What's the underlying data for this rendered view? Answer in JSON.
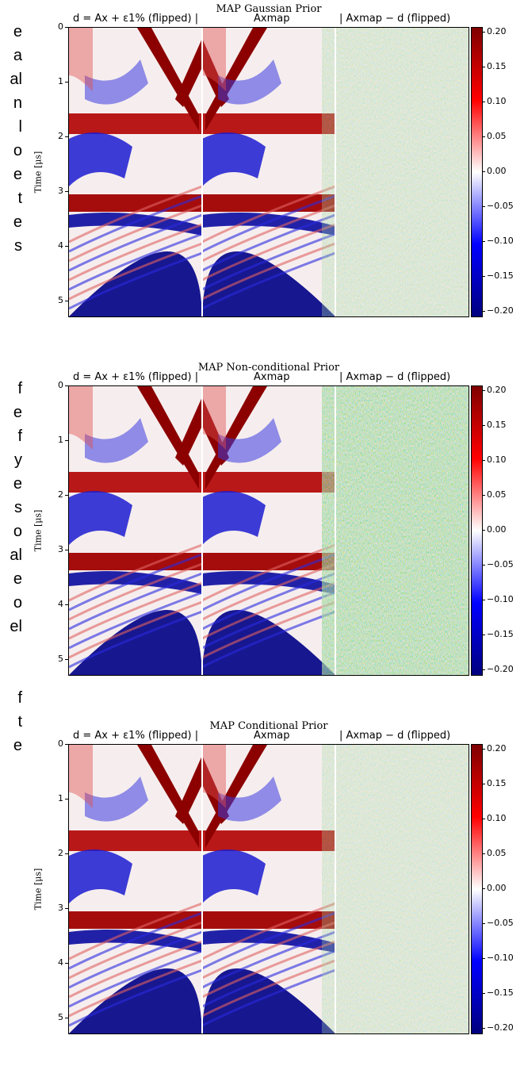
{
  "edge_words": [
    "e",
    "a",
    "al",
    "n",
    "l",
    "o",
    "e",
    "t",
    "e",
    "s",
    "f",
    "e",
    "f",
    "y",
    "e",
    "s",
    "o",
    "al",
    "e",
    "o",
    "el",
    "f",
    "t",
    "e"
  ],
  "colors": {
    "dark_red": "#7f0000",
    "red": "#ff0000",
    "white": "#ffffff",
    "blue": "#0000ff",
    "dark_blue": "#00007f"
  },
  "chart_data": [
    {
      "type": "heatmap",
      "title": "MAP Gaussian Prior",
      "subtitles": [
        "d = Ax + ε1% (flipped) |",
        "Axmap",
        "|  Axmap − d  (flipped)"
      ],
      "ylabel": "Time [μs]",
      "yticks": [
        "0",
        "1",
        "2",
        "3",
        "4",
        "5"
      ],
      "ylim": [
        0,
        5.3
      ],
      "colorbar_ticks": [
        "0.20",
        "0.15",
        "0.10",
        "0.05",
        "0.00",
        "−0.05",
        "−0.10",
        "−0.15",
        "−0.20"
      ],
      "clim": [
        -0.2,
        0.2
      ],
      "residual_level": 0.02
    },
    {
      "type": "heatmap",
      "title": "MAP Non-conditional Prior",
      "subtitles": [
        "d = Ax + ε1% (flipped) |",
        "Axmap",
        "|  Axmap − d  (flipped)"
      ],
      "ylabel": "Time [μs]",
      "yticks": [
        "0",
        "1",
        "2",
        "3",
        "4",
        "5"
      ],
      "ylim": [
        0,
        5.3
      ],
      "colorbar_ticks": [
        "0.20",
        "0.15",
        "0.10",
        "0.05",
        "0.00",
        "−0.05",
        "−0.10",
        "−0.15",
        "−0.20"
      ],
      "clim": [
        -0.2,
        0.2
      ],
      "residual_level": 0.1
    },
    {
      "type": "heatmap",
      "title": "MAP Conditional Prior",
      "subtitles": [
        "d = Ax + ε1% (flipped) |",
        "Axmap",
        "|  Axmap − d  (flipped)"
      ],
      "ylabel": "Time [μs]",
      "yticks": [
        "0",
        "1",
        "2",
        "3",
        "4",
        "5"
      ],
      "ylim": [
        0,
        5.3
      ],
      "colorbar_ticks": [
        "0.20",
        "0.15",
        "0.10",
        "0.05",
        "0.00",
        "−0.05",
        "−0.10",
        "−0.15",
        "−0.20"
      ],
      "clim": [
        -0.2,
        0.2
      ],
      "residual_level": 0.015
    }
  ]
}
